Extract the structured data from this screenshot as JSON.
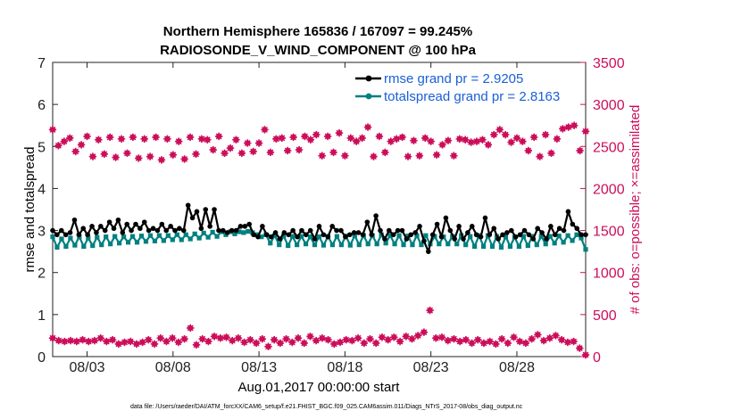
{
  "chart_data": {
    "type": "line",
    "title": "Northern Hemisphere 165836 / 167097 = 99.245%",
    "subtitle": "RADIOSONDE_V_WIND_COMPONENT @ 100 hPa",
    "xlabel": "Aug.01,2017 00:00:00 start",
    "ylabel_left": "rmse and totalspread",
    "ylabel_right": "# of obs: o=possible; ×=assimilated",
    "footer": "data file: /Users/raeder/DAI/ATM_forcXX/CAM6_setup/f.e21.FHIST_BGC.f09_025.CAM6assim.011/Diags_NTrS_2017-08/obs_diag_output.nc",
    "x_tick_labels": [
      "08/03",
      "08/08",
      "08/13",
      "08/18",
      "08/23",
      "08/28"
    ],
    "x_tick_days": [
      3,
      8,
      13,
      18,
      23,
      28
    ],
    "x_range_days": [
      1,
      32
    ],
    "ylim_left": [
      0,
      7
    ],
    "yticks_left": [
      "0",
      "1",
      "2",
      "3",
      "4",
      "5",
      "6",
      "7"
    ],
    "ylim_right": [
      0,
      3500
    ],
    "yticks_right": [
      "0",
      "500",
      "1000",
      "1500",
      "2000",
      "2500",
      "3000",
      "3500"
    ],
    "legend": [
      "rmse grand pr = 2.9205",
      "totalspread grand pr = 2.8163"
    ],
    "colors": {
      "rmse": "#000000",
      "spread": "#008080",
      "obs": "#cc0e5a",
      "legend_text": "#1a5fd6"
    },
    "series": [
      {
        "name": "rmse",
        "axis": "left",
        "values": [
          3.0,
          2.9,
          3.0,
          2.9,
          2.95,
          3.25,
          2.9,
          3.05,
          2.9,
          3.1,
          2.95,
          3.1,
          3.0,
          3.2,
          3.05,
          3.25,
          2.95,
          3.15,
          3.0,
          3.15,
          3.05,
          3.2,
          3.0,
          3.05,
          3.0,
          3.15,
          3.0,
          3.1,
          3.0,
          3.05,
          3.0,
          3.6,
          3.3,
          3.45,
          3.05,
          3.5,
          3.1,
          3.5,
          3.0,
          3.0,
          2.95,
          3.0,
          3.0,
          3.1,
          3.1,
          3.15,
          2.9,
          2.85,
          3.1,
          2.9,
          2.85,
          2.95,
          2.8,
          2.95,
          2.9,
          3.0,
          2.85,
          3.0,
          2.9,
          3.0,
          2.8,
          3.1,
          2.9,
          2.85,
          3.1,
          3.0,
          3.0,
          2.85,
          2.9,
          2.95,
          2.95,
          2.9,
          3.2,
          2.9,
          3.35,
          3.0,
          2.8,
          3.0,
          2.9,
          3.0,
          3.0,
          2.8,
          2.9,
          2.95,
          3.1,
          2.75,
          2.5,
          2.9,
          3.15,
          2.85,
          3.3,
          3.0,
          2.8,
          3.1,
          2.8,
          2.95,
          3.1,
          2.9,
          2.85,
          3.3,
          2.9,
          3.05,
          2.8,
          2.9,
          2.95,
          3.0,
          2.85,
          2.9,
          3.0,
          2.9,
          2.8,
          3.05,
          2.95,
          2.8,
          3.1,
          2.9,
          3.05,
          3.0,
          3.45,
          3.15,
          3.05,
          2.9,
          2.9
        ]
      },
      {
        "name": "totalspread",
        "axis": "left",
        "values": [
          2.85,
          2.6,
          2.8,
          2.62,
          2.82,
          2.65,
          2.85,
          2.62,
          2.82,
          2.64,
          2.84,
          2.66,
          2.85,
          2.68,
          2.86,
          2.7,
          2.85,
          2.72,
          2.86,
          2.72,
          2.87,
          2.74,
          2.88,
          2.75,
          2.88,
          2.76,
          2.88,
          2.78,
          2.9,
          2.78,
          2.9,
          2.8,
          2.92,
          2.82,
          2.94,
          2.84,
          2.96,
          2.86,
          2.97,
          2.9,
          2.97,
          2.92,
          2.97,
          2.95,
          2.98,
          2.95,
          2.9,
          2.85,
          2.9,
          2.7,
          2.88,
          2.66,
          2.87,
          2.64,
          2.86,
          2.66,
          2.86,
          2.68,
          2.85,
          2.66,
          2.85,
          2.65,
          2.86,
          2.66,
          2.86,
          2.66,
          2.87,
          2.65,
          2.88,
          2.66,
          2.88,
          2.68,
          2.88,
          2.68,
          2.9,
          2.7,
          2.88,
          2.68,
          2.88,
          2.66,
          2.87,
          2.66,
          2.88,
          2.66,
          2.88,
          2.68,
          2.86,
          2.68,
          2.85,
          2.68,
          2.86,
          2.68,
          2.88,
          2.66,
          2.86,
          2.62,
          2.88,
          2.62,
          2.88,
          2.62,
          2.86,
          2.6,
          2.86,
          2.62,
          2.84,
          2.62,
          2.86,
          2.64,
          2.86,
          2.66,
          2.86,
          2.68,
          2.86,
          2.7,
          2.87,
          2.72,
          2.88,
          2.76,
          2.9,
          2.82,
          2.55
        ]
      },
      {
        "name": "obs possible",
        "axis": "right",
        "values": [
          2700,
          2510,
          2560,
          2600,
          2440,
          2520,
          2620,
          2380,
          2580,
          2410,
          2610,
          2370,
          2590,
          2420,
          2610,
          2360,
          2590,
          2380,
          2610,
          2340,
          2590,
          2400,
          2560,
          2350,
          2610,
          2410,
          2590,
          2580,
          2460,
          2620,
          2420,
          2480,
          2580,
          2420,
          2540,
          2440,
          2540,
          2700,
          2430,
          2590,
          2600,
          2450,
          2610,
          2460,
          2620,
          2580,
          2640,
          2390,
          2620,
          2430,
          2660,
          2390,
          2600,
          2560,
          2600,
          2730,
          2380,
          2620,
          2430,
          2560,
          2590,
          2610,
          2380,
          2570,
          2390,
          2600,
          2560,
          2400,
          2520,
          2570,
          2390,
          2590,
          2580,
          2550,
          2560,
          2580,
          2520,
          2640,
          2700,
          2640,
          2550,
          2600,
          2560,
          2450,
          2610,
          2380,
          2640,
          2420,
          2590,
          2710,
          2730,
          2750,
          2450,
          2680
        ]
      },
      {
        "name": "obs assimilated",
        "axis": "right",
        "values": [
          220,
          190,
          180,
          190,
          180,
          200,
          180,
          190,
          220,
          180,
          200,
          150,
          170,
          180,
          150,
          170,
          200,
          150,
          220,
          180,
          220,
          170,
          210,
          340,
          140,
          210,
          180,
          240,
          220,
          230,
          190,
          220,
          170,
          200,
          160,
          210,
          120,
          200,
          160,
          210,
          170,
          220,
          160,
          240,
          190,
          220,
          200,
          150,
          170,
          200,
          190,
          220,
          160,
          210,
          160,
          230,
          200,
          230,
          180,
          240,
          210,
          250,
          290,
          550,
          220,
          230,
          190,
          210,
          180,
          200,
          160,
          200,
          160,
          180,
          150,
          210,
          160,
          230,
          180,
          160,
          210,
          260,
          190,
          220,
          250,
          200,
          170,
          180,
          100,
          20
        ]
      }
    ]
  }
}
